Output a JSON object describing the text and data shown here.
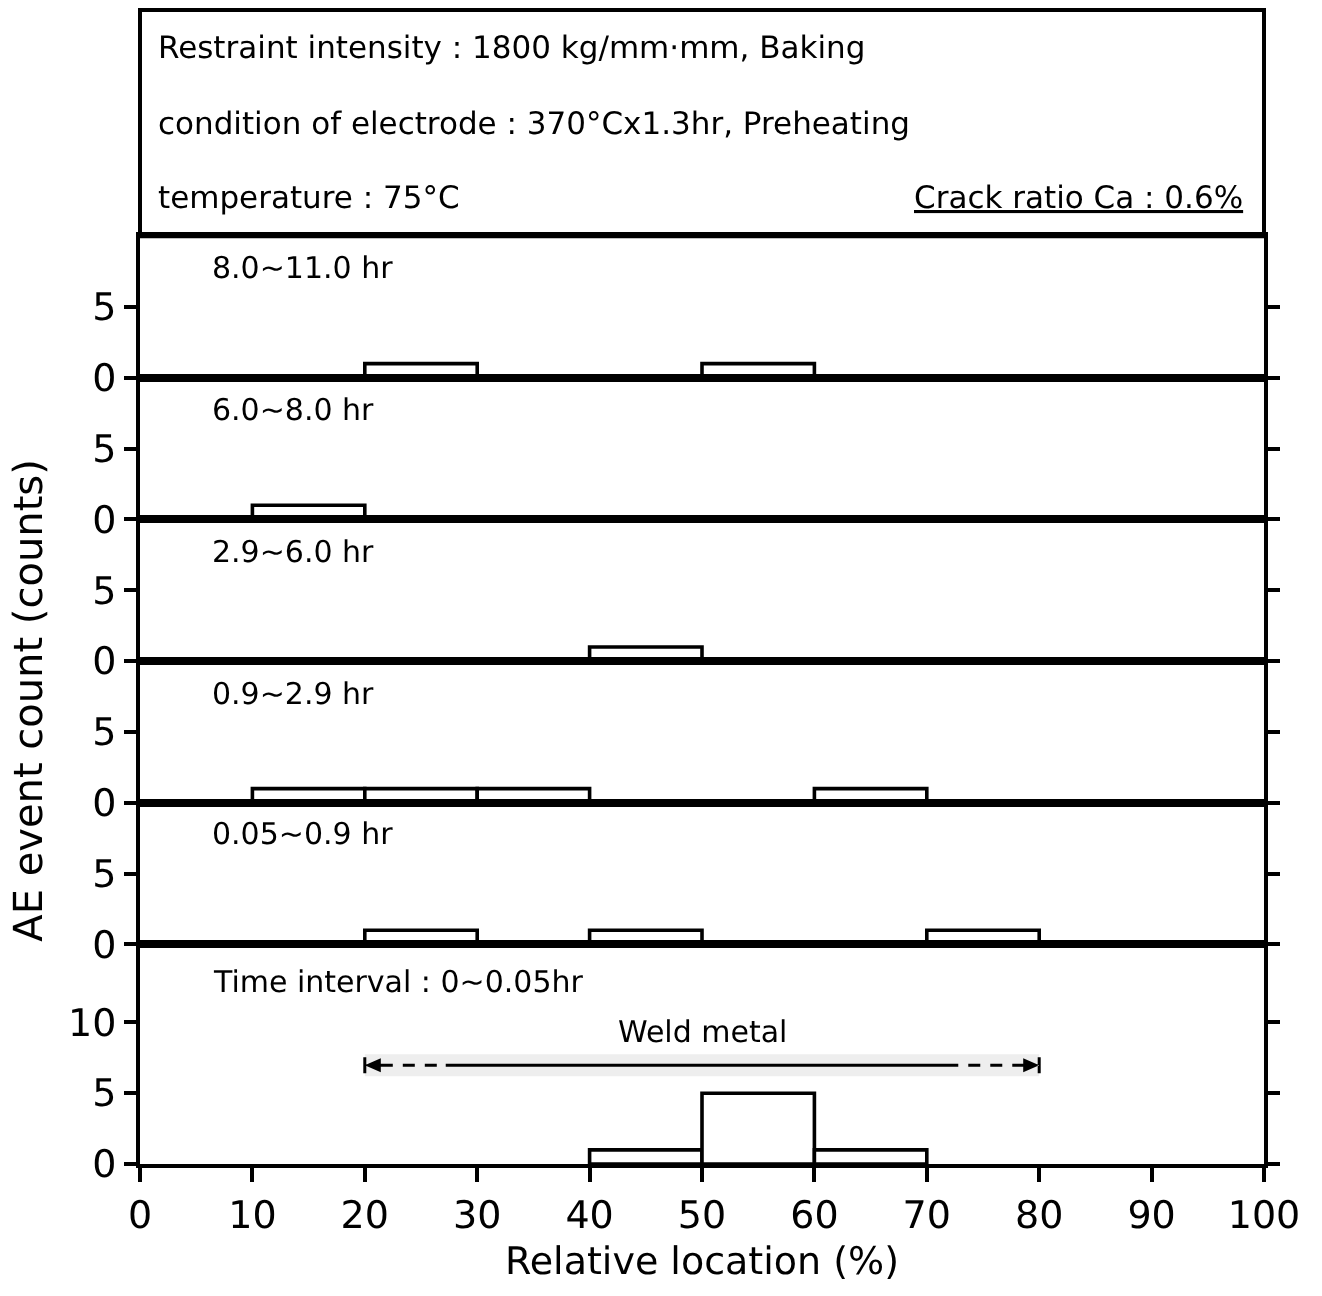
{
  "chart_data": [
    {
      "type": "other",
      "title": "Restraint intensity : 1800 kg/mm·mm, Baking condition of electrode : 370°Cx1.3hr, Preheating temperature : 75°C",
      "annotations": [
        "Crack ratio Ca : 0.6%"
      ]
    },
    {
      "type": "histogram",
      "title": "8.0~11.0 hr",
      "bins": [
        0,
        10,
        20,
        30,
        40,
        50,
        60,
        70,
        80,
        90,
        100
      ],
      "values": [
        0,
        0,
        1,
        0,
        0,
        1,
        0,
        0,
        0,
        0
      ],
      "color": "#ffffff",
      "xlim": [
        0,
        100
      ],
      "ylim": [
        0,
        10
      ],
      "yticks": [
        0,
        5
      ],
      "tick_labels": "y"
    },
    {
      "type": "histogram",
      "title": "6.0~8.0 hr",
      "bins": [
        0,
        10,
        20,
        30,
        40,
        50,
        60,
        70,
        80,
        90,
        100
      ],
      "values": [
        0,
        1,
        0,
        0,
        0,
        0,
        0,
        0,
        0,
        0
      ],
      "color": "#ffffff",
      "xlim": [
        0,
        100
      ],
      "ylim": [
        0,
        10
      ],
      "yticks": [
        0,
        5
      ],
      "tick_labels": "y"
    },
    {
      "type": "histogram",
      "title": "2.9~6.0 hr",
      "bins": [
        0,
        10,
        20,
        30,
        40,
        50,
        60,
        70,
        80,
        90,
        100
      ],
      "values": [
        0,
        0,
        0,
        0,
        1,
        0,
        0,
        0,
        0,
        0
      ],
      "color": "#ffffff",
      "xlim": [
        0,
        100
      ],
      "ylim": [
        0,
        10
      ],
      "yticks": [
        0,
        5
      ],
      "tick_labels": "y"
    },
    {
      "type": "histogram",
      "title": "0.9~2.9 hr",
      "bins": [
        0,
        10,
        20,
        30,
        40,
        50,
        60,
        70,
        80,
        90,
        100
      ],
      "values": [
        0,
        1,
        1,
        1,
        0,
        0,
        1,
        0,
        0,
        0
      ],
      "color": "#ffffff",
      "xlim": [
        0,
        100
      ],
      "ylim": [
        0,
        10
      ],
      "yticks": [
        0,
        5
      ],
      "tick_labels": "y"
    },
    {
      "type": "histogram",
      "title": "0.05~0.9 hr",
      "bins": [
        0,
        10,
        20,
        30,
        40,
        50,
        60,
        70,
        80,
        90,
        100
      ],
      "values": [
        0,
        0,
        1,
        0,
        1,
        0,
        0,
        1,
        0,
        0
      ],
      "color": "#ffffff",
      "xlim": [
        0,
        100
      ],
      "ylim": [
        0,
        10
      ],
      "yticks": [
        0,
        5
      ],
      "tick_labels": "y"
    },
    {
      "type": "histogram",
      "title": "Time interval : 0~0.05hr",
      "xlabel": "Relative location (%)",
      "ylabel": "AE event count (counts)",
      "bins": [
        0,
        10,
        20,
        30,
        40,
        50,
        60,
        70,
        80,
        90,
        100
      ],
      "values": [
        0,
        0,
        0,
        0,
        1,
        5,
        1,
        0,
        0,
        0
      ],
      "color": "#ffffff",
      "xlim": [
        0,
        100
      ],
      "ylim": [
        0,
        15.5
      ],
      "xticks": [
        0,
        10,
        20,
        30,
        40,
        50,
        60,
        70,
        80,
        90,
        100
      ],
      "yticks": [
        0,
        5,
        10
      ],
      "bands": [
        {
          "axis": "x",
          "from": 20,
          "to": 80,
          "label": "Weld metal",
          "color": "#eeeeee"
        }
      ]
    }
  ]
}
